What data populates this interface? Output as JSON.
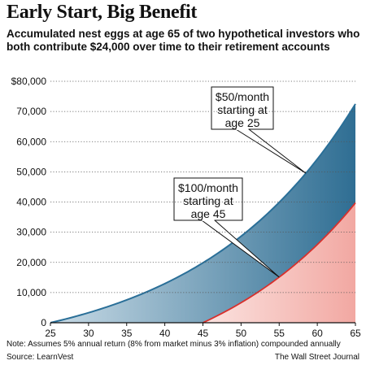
{
  "title": "Early Start, Big Benefit",
  "subtitle": "Accumulated nest eggs at age 65 of two hypothetical investors who both contribute $24,000 over time to their retirement accounts",
  "note": "Note: Assumes 5% annual return (8% from market minus 3% inflation) compounded annually",
  "source": "Source: LearnVest",
  "credit": "The Wall Street Journal",
  "colors": {
    "series1_line": "#2a6f98",
    "series1_fill_dark": "#2f6e93",
    "series1_fill_light": "#c9dbe6",
    "series2_line": "#d9302c",
    "series2_fill_dark": "#f2a8a2",
    "series2_fill_light": "#fbe3e0",
    "grid": "#555555"
  },
  "chart_data": {
    "type": "area",
    "xlim": [
      25,
      65
    ],
    "ylim": [
      0,
      80000
    ],
    "x_ticks": [
      "25",
      "30",
      "35",
      "40",
      "45",
      "50",
      "55",
      "60",
      "65"
    ],
    "y_ticks": [
      "$80,000",
      "70,000",
      "60,000",
      "50,000",
      "40,000",
      "30,000",
      "20,000",
      "10,000",
      "0"
    ],
    "grid": "horizontal dotted",
    "series": [
      {
        "label": "$50/month starting at age 25",
        "label_lines": [
          "$50/month",
          "starting at",
          "age 25"
        ],
        "start_age": 25,
        "monthly_contribution": 50,
        "annual_return": 0.05,
        "end_value": 72500
      },
      {
        "label": "$100/month starting at age 45",
        "label_lines": [
          "$100/month",
          "starting at",
          "age 45"
        ],
        "start_age": 45,
        "monthly_contribution": 100,
        "annual_return": 0.05,
        "end_value": 39700
      }
    ]
  }
}
